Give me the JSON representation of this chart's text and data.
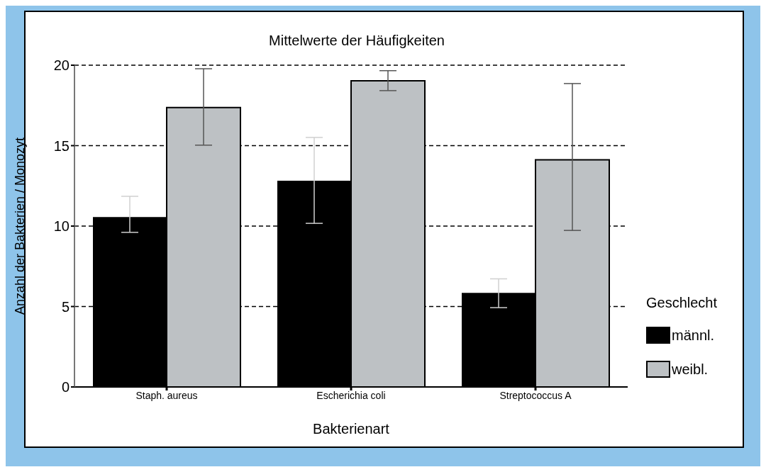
{
  "chart_data": {
    "type": "bar",
    "title": "Mittelwerte der Häufigkeiten",
    "xlabel": "Bakterienart",
    "ylabel": "Anzahl der Bakterien / Monozyt",
    "legend_title": "Geschlecht",
    "categories": [
      "Staph. aureus",
      "Escherichia coli",
      "Streptococcus A"
    ],
    "series": [
      {
        "name": "männl.",
        "color": "#000000",
        "values": [
          10.56,
          12.82,
          5.85
        ],
        "errors": [
          [
            9.61,
            11.85
          ],
          [
            10.17,
            15.51
          ],
          [
            4.93,
            6.72
          ]
        ]
      },
      {
        "name": "weibl.",
        "color": "#bdc1c4",
        "values": [
          17.37,
          19.03,
          14.12
        ],
        "errors": [
          [
            15.03,
            19.78
          ],
          [
            18.42,
            19.66
          ],
          [
            9.73,
            18.86
          ]
        ]
      }
    ],
    "ylim": [
      0,
      20
    ],
    "yticks": [
      0,
      5,
      10,
      15,
      20
    ],
    "grid": "y",
    "legend": "right"
  }
}
